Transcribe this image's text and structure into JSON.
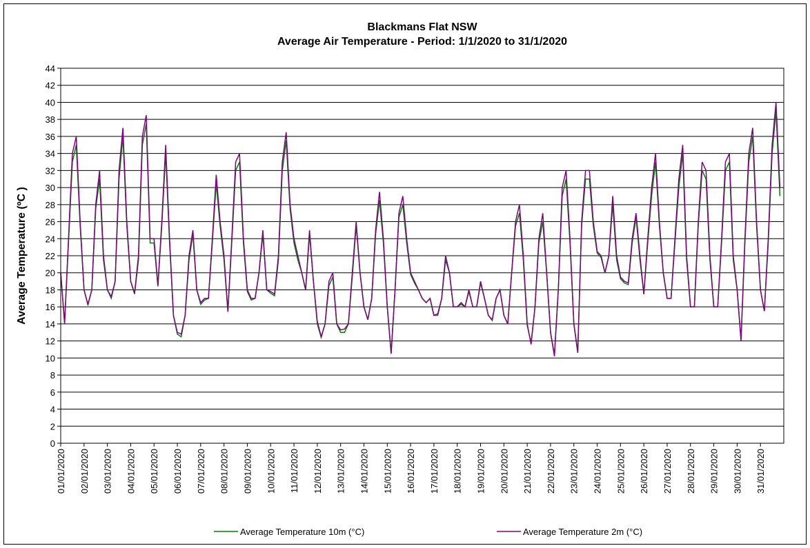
{
  "chart_data": {
    "type": "line",
    "title": "Blackmans Flat NSW",
    "subtitle": "Average Air Temperature - Period: 1/1/2020 to 31/1/2020",
    "y_label": "Average Temperature (ºC )",
    "categories": [
      "01/01/2020",
      null,
      null,
      null,
      null,
      null,
      "02/01/2020",
      null,
      null,
      null,
      null,
      null,
      "03/01/2020",
      null,
      null,
      null,
      null,
      null,
      "04/01/2020",
      null,
      null,
      null,
      null,
      null,
      "05/01/2020",
      null,
      null,
      null,
      null,
      null,
      "06/01/2020",
      null,
      null,
      null,
      null,
      null,
      "07/01/2020",
      null,
      null,
      null,
      null,
      null,
      "08/01/2020",
      null,
      null,
      null,
      null,
      null,
      "09/01/2020",
      null,
      null,
      null,
      null,
      null,
      "10/01/2020",
      null,
      null,
      null,
      null,
      null,
      "11/01/2020",
      null,
      null,
      null,
      null,
      null,
      "12/01/2020",
      null,
      null,
      null,
      null,
      null,
      "13/01/2020",
      null,
      null,
      null,
      null,
      null,
      "14/01/2020",
      null,
      null,
      null,
      null,
      null,
      "15/01/2020",
      null,
      null,
      null,
      null,
      null,
      "16/01/2020",
      null,
      null,
      null,
      null,
      null,
      "17/01/2020",
      null,
      null,
      null,
      null,
      null,
      "18/01/2020",
      null,
      null,
      null,
      null,
      null,
      "19/01/2020",
      null,
      null,
      null,
      null,
      null,
      "20/01/2020",
      null,
      null,
      null,
      null,
      null,
      "21/01/2020",
      null,
      null,
      null,
      null,
      null,
      "22/01/2020",
      null,
      null,
      null,
      null,
      null,
      "23/01/2020",
      null,
      null,
      null,
      null,
      null,
      "24/01/2020",
      null,
      null,
      null,
      null,
      null,
      "25/01/2020",
      null,
      null,
      null,
      null,
      null,
      "26/01/2020",
      null,
      null,
      null,
      null,
      null,
      "27/01/2020",
      null,
      null,
      null,
      null,
      null,
      "28/01/2020",
      null,
      null,
      null,
      null,
      null,
      "29/01/2020",
      null,
      null,
      null,
      null,
      null,
      "30/01/2020",
      null,
      null,
      null,
      null,
      null,
      "31/01/2020",
      null,
      null,
      null,
      null,
      null
    ],
    "series": [
      {
        "name": "Average Temperature 10m (°C)",
        "color": "#008000",
        "values": [
          20,
          14.2,
          23.5,
          33,
          35,
          25.5,
          18,
          16.2,
          18,
          27.5,
          31,
          21.5,
          18,
          17,
          19,
          31,
          36,
          25.5,
          19,
          17.5,
          21.5,
          35,
          37.5,
          23.5,
          23.5,
          18.4,
          25.5,
          34,
          23.5,
          15,
          12.8,
          12.5,
          15,
          21.5,
          24.5,
          18,
          16.3,
          16.8,
          17,
          23.5,
          30.5,
          25.5,
          21.5,
          15.4,
          23.5,
          32,
          33,
          23.5,
          17.8,
          16.8,
          17,
          20,
          24.5,
          18,
          17.6,
          17.3,
          21.5,
          32,
          35.5,
          27.5,
          23.5,
          21.5,
          20,
          18,
          24.5,
          19,
          14,
          12.4,
          14,
          18.5,
          19.5,
          14,
          13,
          13,
          14,
          19.5,
          25.5,
          20,
          16,
          14.5,
          17,
          24.5,
          28.5,
          23.5,
          16,
          10.6,
          18,
          26.5,
          28,
          23.5,
          19.8,
          18.8,
          18,
          17,
          16.5,
          17,
          15,
          15,
          17,
          21.5,
          20,
          16,
          16,
          16.3,
          16,
          17.8,
          16,
          16,
          18.8,
          17,
          15,
          14.4,
          17,
          18,
          15,
          14,
          20,
          25.5,
          27,
          21.5,
          13.8,
          11.8,
          16,
          23.5,
          26,
          20,
          13,
          10.4,
          18,
          29,
          31,
          23.5,
          14,
          10.8,
          25.5,
          31,
          31,
          25.5,
          22.3,
          21.8,
          20,
          22,
          28,
          21.5,
          19.3,
          18.8,
          18.6,
          23.5,
          26.5,
          21.5,
          17.5,
          23.5,
          29,
          33,
          25.5,
          20,
          17,
          17,
          23.5,
          30,
          34,
          21.5,
          16,
          16,
          25.5,
          32,
          31,
          21.5,
          16,
          16,
          23.5,
          32,
          33,
          21.5,
          18,
          12.2,
          23.5,
          33,
          36,
          25.5,
          18,
          15.5,
          23.5,
          34,
          39,
          29
        ]
      },
      {
        "name": "Average Temperature 2m (°C)",
        "color": "#800080",
        "values": [
          20,
          14,
          24,
          34,
          36,
          26,
          18,
          16.3,
          18,
          28,
          32,
          22,
          18,
          17.2,
          19,
          32,
          37,
          26,
          19,
          17.6,
          22,
          36,
          38.5,
          24,
          24,
          18.5,
          26,
          35,
          24,
          15,
          13,
          12.8,
          15,
          22,
          25,
          18,
          16.5,
          17,
          17,
          24,
          31.5,
          26,
          22,
          15.5,
          24,
          33,
          34,
          24,
          18,
          17,
          17,
          20,
          25,
          18,
          17.8,
          17.5,
          22,
          33,
          36.5,
          28,
          24,
          22,
          20,
          18,
          25,
          19,
          14.3,
          12.5,
          14,
          19,
          20,
          14,
          13.3,
          13.4,
          14,
          20,
          26,
          20,
          16,
          14.5,
          17,
          25,
          29.5,
          24,
          16,
          10.5,
          18,
          27,
          29,
          24,
          20,
          19,
          18,
          17,
          16.5,
          17,
          15,
          15.2,
          17,
          22,
          20,
          16,
          16,
          16.5,
          16,
          18,
          16,
          16,
          19,
          17,
          15,
          14.5,
          17,
          18,
          15,
          14,
          20,
          26,
          28,
          22,
          14,
          11.6,
          16,
          24,
          27,
          20,
          13,
          10.2,
          18,
          30,
          32,
          24,
          14,
          10.6,
          26,
          32,
          32,
          26,
          22.5,
          22,
          20,
          22,
          29,
          22,
          19.5,
          19,
          18.8,
          24,
          27,
          22,
          17.5,
          24,
          30,
          34,
          26,
          20,
          17,
          17,
          24,
          31,
          35,
          22,
          16,
          16,
          26,
          33,
          32,
          22,
          16,
          16,
          24,
          33,
          34,
          22,
          18,
          12,
          24,
          34,
          37,
          26,
          18,
          15.5,
          24,
          35,
          40,
          30
        ]
      }
    ],
    "ylim": [
      0,
      44
    ],
    "yticks": [
      0,
      2,
      4,
      6,
      8,
      10,
      12,
      14,
      16,
      18,
      20,
      22,
      24,
      26,
      28,
      30,
      32,
      34,
      36,
      38,
      40,
      42,
      44
    ],
    "grid": true,
    "legend": "bottom"
  }
}
